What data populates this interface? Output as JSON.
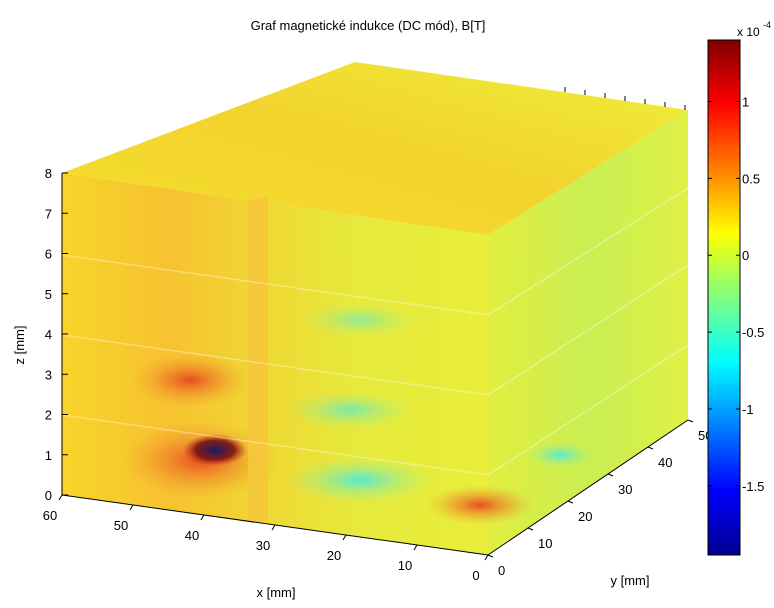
{
  "chart_data": {
    "type": "heatmap",
    "title": "Graf magnetické indukce (DC mód), B[T]",
    "xlabel": "x [mm]",
    "ylabel": "y [mm]",
    "zlabel": "z [mm]",
    "xlim": [
      0,
      60
    ],
    "ylim": [
      0,
      50
    ],
    "zlim": [
      0,
      8
    ],
    "x_ticks": [
      "60",
      "50",
      "40",
      "30",
      "20",
      "10",
      "0"
    ],
    "y_ticks": [
      "0",
      "10",
      "20",
      "30",
      "40",
      "50"
    ],
    "z_ticks": [
      "0",
      "1",
      "2",
      "3",
      "4",
      "5",
      "6",
      "7",
      "8"
    ],
    "colorbar": {
      "exponent_label": "x 10",
      "exponent_power": "-4",
      "range": [
        -1.95,
        1.4
      ],
      "colormap": "jet",
      "ticks": [
        "1",
        "0.5",
        "0",
        "-0.5",
        "-1",
        "-1.5"
      ]
    },
    "slices": {
      "z_planes_mm": [
        1,
        2,
        3,
        4,
        5,
        6,
        7,
        8
      ],
      "x_plane_mm": 30
    }
  }
}
